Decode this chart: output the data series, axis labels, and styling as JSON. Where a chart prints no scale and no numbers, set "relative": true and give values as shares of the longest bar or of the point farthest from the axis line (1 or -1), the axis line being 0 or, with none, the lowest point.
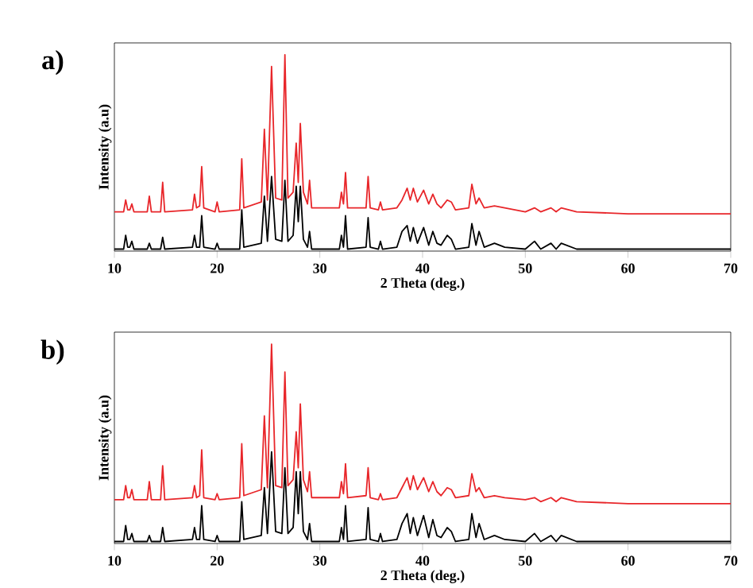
{
  "chart_data": [
    {
      "type": "line",
      "title": "a)",
      "xlabel": "2 Theta (deg.)",
      "ylabel": "Intensity (a.u)",
      "relative": true,
      "xlim": [
        10,
        70
      ],
      "xticks": [
        10,
        20,
        30,
        40,
        50,
        60,
        70
      ],
      "x": [
        10,
        10.9,
        11.1,
        11.3,
        11.5,
        11.7,
        11.9,
        13.2,
        13.4,
        13.6,
        14.5,
        14.7,
        14.9,
        17.6,
        17.8,
        18.0,
        18.3,
        18.5,
        18.7,
        19.8,
        20.0,
        20.2,
        22.2,
        22.4,
        22.6,
        24.3,
        24.6,
        24.9,
        25.3,
        25.7,
        26.3,
        26.6,
        26.9,
        27.4,
        27.7,
        27.9,
        28.1,
        28.4,
        28.8,
        29.0,
        29.2,
        31.9,
        32.1,
        32.3,
        32.5,
        32.7,
        34.5,
        34.7,
        34.9,
        35.7,
        35.9,
        36.1,
        37.5,
        38.0,
        38.5,
        38.8,
        39.1,
        39.5,
        40.1,
        40.6,
        41.0,
        41.4,
        41.8,
        42.4,
        42.8,
        43.2,
        44.5,
        44.8,
        45.2,
        45.5,
        46.0,
        47.0,
        48.0,
        50.0,
        50.9,
        51.5,
        52.5,
        53.0,
        53.5,
        55,
        60,
        65,
        70
      ],
      "series": [
        {
          "color": "#e8262a",
          "values": [
            0.2,
            0.2,
            0.26,
            0.21,
            0.21,
            0.24,
            0.2,
            0.2,
            0.28,
            0.2,
            0.2,
            0.35,
            0.2,
            0.21,
            0.29,
            0.22,
            0.23,
            0.43,
            0.22,
            0.2,
            0.25,
            0.2,
            0.21,
            0.47,
            0.22,
            0.25,
            0.62,
            0.26,
            0.94,
            0.27,
            0.26,
            1.0,
            0.27,
            0.3,
            0.55,
            0.35,
            0.65,
            0.3,
            0.24,
            0.36,
            0.22,
            0.22,
            0.3,
            0.24,
            0.4,
            0.22,
            0.22,
            0.38,
            0.22,
            0.21,
            0.25,
            0.21,
            0.22,
            0.26,
            0.32,
            0.26,
            0.32,
            0.25,
            0.31,
            0.24,
            0.29,
            0.24,
            0.22,
            0.26,
            0.25,
            0.21,
            0.22,
            0.34,
            0.24,
            0.27,
            0.22,
            0.23,
            0.22,
            0.2,
            0.22,
            0.2,
            0.22,
            0.2,
            0.22,
            0.2,
            0.19,
            0.19,
            0.19
          ]
        },
        {
          "color": "#000000",
          "values": [
            0.01,
            0.01,
            0.08,
            0.02,
            0.02,
            0.05,
            0.01,
            0.01,
            0.04,
            0.01,
            0.01,
            0.07,
            0.01,
            0.02,
            0.08,
            0.02,
            0.02,
            0.18,
            0.02,
            0.01,
            0.04,
            0.01,
            0.01,
            0.21,
            0.02,
            0.04,
            0.28,
            0.05,
            0.38,
            0.06,
            0.05,
            0.36,
            0.05,
            0.08,
            0.33,
            0.15,
            0.33,
            0.06,
            0.02,
            0.1,
            0.01,
            0.01,
            0.08,
            0.02,
            0.18,
            0.01,
            0.02,
            0.17,
            0.02,
            0.01,
            0.05,
            0.01,
            0.02,
            0.1,
            0.13,
            0.05,
            0.12,
            0.04,
            0.12,
            0.03,
            0.1,
            0.04,
            0.03,
            0.08,
            0.06,
            0.01,
            0.02,
            0.14,
            0.03,
            0.1,
            0.02,
            0.04,
            0.02,
            0.01,
            0.05,
            0.01,
            0.04,
            0.01,
            0.04,
            0.01,
            0.01,
            0.01,
            0.01
          ]
        }
      ]
    },
    {
      "type": "line",
      "title": "b)",
      "xlabel": "2 Theta (deg.)",
      "ylabel": "Intensity (a.u)",
      "relative": true,
      "xlim": [
        10,
        70
      ],
      "xticks": [
        10,
        20,
        30,
        40,
        50,
        60,
        70
      ],
      "x": [
        10,
        10.9,
        11.1,
        11.3,
        11.5,
        11.7,
        11.9,
        13.2,
        13.4,
        13.6,
        14.5,
        14.7,
        14.9,
        17.6,
        17.8,
        18.0,
        18.3,
        18.5,
        18.7,
        19.8,
        20.0,
        20.2,
        22.2,
        22.4,
        22.6,
        24.3,
        24.6,
        24.9,
        25.3,
        25.7,
        26.3,
        26.6,
        26.9,
        27.4,
        27.7,
        27.9,
        28.1,
        28.4,
        28.8,
        29.0,
        29.2,
        31.9,
        32.1,
        32.3,
        32.5,
        32.7,
        34.5,
        34.7,
        34.9,
        35.7,
        35.9,
        36.1,
        37.5,
        38.0,
        38.5,
        38.8,
        39.1,
        39.5,
        40.1,
        40.6,
        41.0,
        41.4,
        41.8,
        42.4,
        42.8,
        43.2,
        44.5,
        44.8,
        45.2,
        45.5,
        46.0,
        47.0,
        48.0,
        50.0,
        50.9,
        51.5,
        52.5,
        53.0,
        53.5,
        55,
        60,
        65,
        70
      ],
      "series": [
        {
          "color": "#e8262a",
          "values": [
            0.22,
            0.22,
            0.29,
            0.23,
            0.23,
            0.27,
            0.22,
            0.22,
            0.31,
            0.22,
            0.22,
            0.39,
            0.22,
            0.23,
            0.29,
            0.23,
            0.24,
            0.47,
            0.23,
            0.22,
            0.25,
            0.22,
            0.23,
            0.5,
            0.24,
            0.27,
            0.64,
            0.28,
            1.0,
            0.29,
            0.28,
            0.86,
            0.29,
            0.32,
            0.56,
            0.38,
            0.7,
            0.32,
            0.26,
            0.36,
            0.23,
            0.23,
            0.31,
            0.25,
            0.4,
            0.23,
            0.24,
            0.38,
            0.23,
            0.22,
            0.25,
            0.22,
            0.23,
            0.28,
            0.33,
            0.27,
            0.34,
            0.27,
            0.33,
            0.26,
            0.31,
            0.26,
            0.24,
            0.28,
            0.27,
            0.23,
            0.24,
            0.35,
            0.26,
            0.28,
            0.23,
            0.24,
            0.23,
            0.22,
            0.23,
            0.21,
            0.23,
            0.21,
            0.23,
            0.21,
            0.2,
            0.2,
            0.2
          ]
        },
        {
          "color": "#000000",
          "values": [
            0.01,
            0.01,
            0.09,
            0.02,
            0.02,
            0.05,
            0.01,
            0.01,
            0.04,
            0.01,
            0.01,
            0.08,
            0.01,
            0.02,
            0.08,
            0.02,
            0.02,
            0.19,
            0.02,
            0.01,
            0.04,
            0.01,
            0.01,
            0.21,
            0.02,
            0.04,
            0.28,
            0.05,
            0.46,
            0.06,
            0.05,
            0.38,
            0.05,
            0.08,
            0.36,
            0.15,
            0.36,
            0.06,
            0.02,
            0.1,
            0.01,
            0.01,
            0.08,
            0.02,
            0.19,
            0.01,
            0.02,
            0.18,
            0.02,
            0.01,
            0.05,
            0.01,
            0.02,
            0.1,
            0.15,
            0.05,
            0.13,
            0.04,
            0.14,
            0.03,
            0.12,
            0.04,
            0.03,
            0.08,
            0.06,
            0.01,
            0.02,
            0.15,
            0.03,
            0.1,
            0.02,
            0.04,
            0.02,
            0.01,
            0.05,
            0.01,
            0.04,
            0.01,
            0.04,
            0.01,
            0.01,
            0.01,
            0.01
          ]
        }
      ]
    }
  ]
}
